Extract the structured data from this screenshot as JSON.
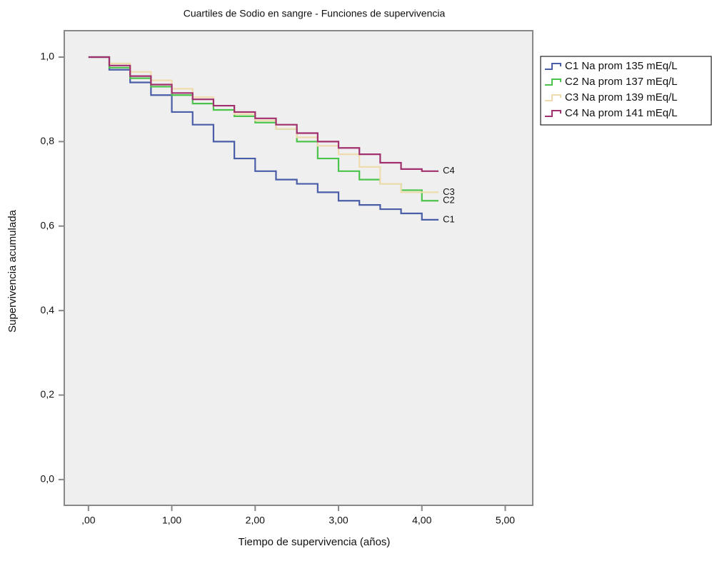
{
  "chart_data": {
    "type": "step",
    "title": "Cuartiles de Sodio en sangre - Funciones de supervivencia",
    "x_label": "Tiempo de supervivencia (años)",
    "y_label": "Supervivencia acumulada",
    "x": [
      0,
      0.25,
      0.5,
      0.75,
      1.0,
      1.25,
      1.5,
      1.75,
      2.0,
      2.25,
      2.5,
      2.75,
      3.0,
      3.25,
      3.5,
      3.75,
      4.0,
      4.2
    ],
    "series": [
      {
        "name": "C1 Na prom 135 mEq/L",
        "label": "C1",
        "color": "#4a5ea8",
        "values": [
          1.0,
          0.97,
          0.94,
          0.91,
          0.87,
          0.84,
          0.8,
          0.76,
          0.73,
          0.71,
          0.7,
          0.68,
          0.66,
          0.65,
          0.64,
          0.63,
          0.615,
          0.615
        ]
      },
      {
        "name": "C2 Na prom 137 mEq/L",
        "label": "C2",
        "color": "#4cc44c",
        "values": [
          1.0,
          0.975,
          0.95,
          0.93,
          0.91,
          0.89,
          0.875,
          0.86,
          0.845,
          0.83,
          0.8,
          0.76,
          0.73,
          0.71,
          0.7,
          0.685,
          0.66,
          0.66
        ]
      },
      {
        "name": "C3 Na prom 139 mEq/L",
        "label": "C3",
        "color": "#efdcae",
        "values": [
          1.0,
          0.985,
          0.965,
          0.945,
          0.925,
          0.905,
          0.885,
          0.865,
          0.85,
          0.83,
          0.81,
          0.79,
          0.77,
          0.74,
          0.7,
          0.68,
          0.68,
          0.68
        ]
      },
      {
        "name": "C4 Na prom 141 mEq/L",
        "label": "C4",
        "color": "#a0306e",
        "values": [
          1.0,
          0.98,
          0.955,
          0.935,
          0.915,
          0.9,
          0.885,
          0.87,
          0.855,
          0.84,
          0.82,
          0.8,
          0.785,
          0.77,
          0.75,
          0.735,
          0.73,
          0.73
        ]
      }
    ],
    "xlim": [
      -0.29,
      5.33
    ],
    "ylim": [
      -0.061,
      1.0625
    ],
    "xticks": [
      {
        "value": 0,
        "label": ",00"
      },
      {
        "value": 1,
        "label": "1,00"
      },
      {
        "value": 2,
        "label": "2,00"
      },
      {
        "value": 3,
        "label": "3,00"
      },
      {
        "value": 4,
        "label": "4,00"
      },
      {
        "value": 5,
        "label": "5,00"
      }
    ],
    "yticks": [
      {
        "value": 0,
        "label": "0,0"
      },
      {
        "value": 0.2,
        "label": "0,2"
      },
      {
        "value": 0.4,
        "label": "0,4"
      },
      {
        "value": 0.6,
        "label": "0,6"
      },
      {
        "value": 0.8,
        "label": "0,8"
      },
      {
        "value": 1.0,
        "label": "1,0"
      }
    ],
    "grid": false,
    "legend": "right",
    "plot_background": "#efefef"
  }
}
